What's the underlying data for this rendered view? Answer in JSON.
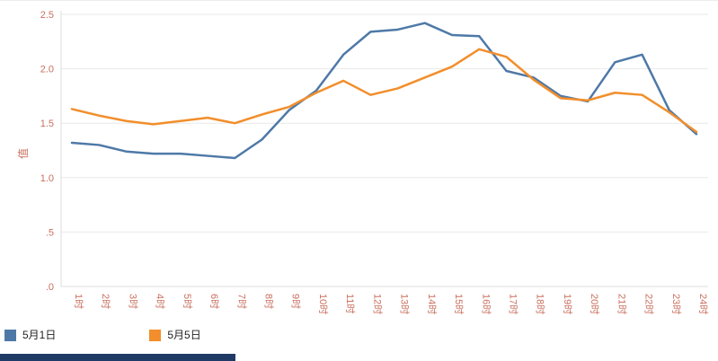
{
  "chart": {
    "y_axis_title": "值"
  },
  "chart_data": {
    "type": "line",
    "title": "",
    "xlabel": "",
    "ylabel": "值",
    "categories": [
      "1时",
      "2时",
      "3时",
      "4时",
      "5时",
      "6时",
      "7时",
      "8时",
      "9时",
      "10时",
      "11时",
      "12时",
      "13时",
      "14时",
      "15时",
      "16时",
      "17时",
      "18时",
      "19时",
      "20时",
      "21时",
      "22时",
      "23时",
      "24时"
    ],
    "series": [
      {
        "name": "5月1日",
        "color": "#4e79a7",
        "values": [
          1.32,
          1.3,
          1.24,
          1.22,
          1.22,
          1.2,
          1.18,
          1.35,
          1.62,
          1.8,
          2.13,
          2.34,
          2.36,
          2.42,
          2.31,
          2.3,
          1.98,
          1.92,
          1.75,
          1.7,
          2.06,
          2.13,
          1.62,
          1.4
        ]
      },
      {
        "name": "5月5日",
        "color": "#f28e2b",
        "values": [
          1.63,
          1.57,
          1.52,
          1.49,
          1.52,
          1.55,
          1.5,
          1.58,
          1.65,
          1.78,
          1.89,
          1.76,
          1.82,
          1.92,
          2.02,
          2.18,
          2.11,
          1.9,
          1.73,
          1.71,
          1.78,
          1.76,
          1.6,
          1.42
        ]
      }
    ],
    "ylim": [
      0,
      2.5
    ],
    "y_ticks": [
      ".0",
      ".5",
      "1.0",
      "1.5",
      "2.0",
      "2.5"
    ],
    "y_tick_values": [
      0,
      0.5,
      1.0,
      1.5,
      2.0,
      2.5
    ],
    "grid": true,
    "legend_position": "bottom-left",
    "axis_label_color": "#c9705f",
    "grid_color": "#e9e9e9",
    "axis_line_color": "#dcdcdc"
  }
}
